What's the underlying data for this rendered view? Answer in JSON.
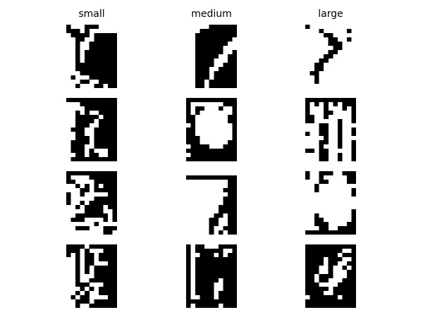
{
  "chart_data": {
    "type": "heatmap",
    "colormap": "binary",
    "colors": {
      "background": "#ffffff",
      "on": "#000000",
      "off": "#ffffff"
    },
    "columns": [
      {
        "title": "small",
        "panels": [
          [
            "10001110000",
            "11101000000",
            "01111011111",
            "00110011111",
            "00100111111",
            "00100111111",
            "00101111111",
            "00101111111",
            "00101111111",
            "00111111111",
            "00111111111",
            "00011111111",
            "01000111111",
            "00011001111",
            "00100011011"
          ],
          [
            "11111111111",
            "00011111111",
            "00001111111",
            "00101001111",
            "00111110111",
            "00111101111",
            "00111001111",
            "01110011111",
            "00110011111",
            "00111011111",
            "01111011111",
            "01110011111",
            "01110100011",
            "00110110011",
            "01111111111"
          ],
          [
            "11111111111",
            "10000111111",
            "11000011111",
            "00101010111",
            "00011011111",
            "10010000011",
            "10000011111",
            "10010111111",
            "00101111011",
            "00001111001",
            "00111111101",
            "01110000101",
            "00000010000",
            "00111000111",
            "00000000110"
          ],
          [
            "11110111111",
            "11101000111",
            "10101101111",
            "00101101111",
            "00101100011",
            "00101011111",
            "00101011111",
            "00100011111",
            "00100111111",
            "00111000111",
            "00010101111",
            "00101001111",
            "01011000011",
            "00111011111",
            "00100111111"
          ]
        ]
      },
      {
        "title": "medium",
        "panels": [
          [
            "00000111111",
            "00011111111",
            "00111111111",
            "00111111110",
            "00111111100",
            "00111111000",
            "00111111001",
            "00111110011",
            "00111100011",
            "00111100111",
            "00111001111",
            "00111011111",
            "00111011111",
            "00110111111",
            "00110111111"
          ],
          [
            "11111111111",
            "10000000111",
            "10110001001",
            "10100000001",
            "11000000011",
            "11000000011",
            "01000000001",
            "11000000001",
            "11000000001",
            "11100000001",
            "11100000011",
            "01111000111",
            "11111111111",
            "01111111111",
            "11111111111"
          ],
          [
            "00000000000",
            "11111111111",
            "00000000011",
            "00000000011",
            "00000000111",
            "00000000011",
            "00000000111",
            "00000000111",
            "00000001111",
            "00000001111",
            "00000011011",
            "00000110011",
            "00000110011",
            "00000100111",
            "00000101011"
          ],
          [
            "10110001111",
            "10111111001",
            "10011101011",
            "10111111111",
            "10111111111",
            "10111111111",
            "10111111111",
            "10111111111",
            "10111110111",
            "10111100111",
            "10111100111",
            "10111101111",
            "10011101111",
            "11111111111",
            "10111110111"
          ]
        ]
      },
      {
        "title": "large",
        "panels": [
          [
            "10000000000",
            "00010000010",
            "00001100000",
            "00000110010",
            "00000111000",
            "00000011000",
            "00000110000",
            "00001100000",
            "00011000000",
            "00110000000",
            "00110000000",
            "01100000000",
            "00100000000",
            "00100000000",
            "00000000000"
          ],
          [
            "11111111111",
            "10101010111",
            "10001000101",
            "10001100001",
            "11001000001",
            "11000001001",
            "00011001000",
            "00011001001",
            "10011001001",
            "00001001000",
            "00011001001",
            "00010001001",
            "11011000001",
            "00011001001",
            "00011001001"
          ],
          [
            "10011100111",
            "10010000011",
            "00011000011",
            "00100000000",
            "00100000001",
            "00000000001",
            "00000000000",
            "00000000000",
            "00000000000",
            "00000000001",
            "00100000001",
            "00110000001",
            "00111000011",
            "00011001111",
            "11111111111"
          ],
          [
            "11111111111",
            "11111111001",
            "11111110111",
            "11110111001",
            "11110110011",
            "11100100101",
            "11100100011",
            "11011100011",
            "11011000111",
            "11100001111",
            "11111011111",
            "11110011111",
            "01111110111",
            "11111111111",
            "11111111111"
          ]
        ]
      }
    ]
  }
}
